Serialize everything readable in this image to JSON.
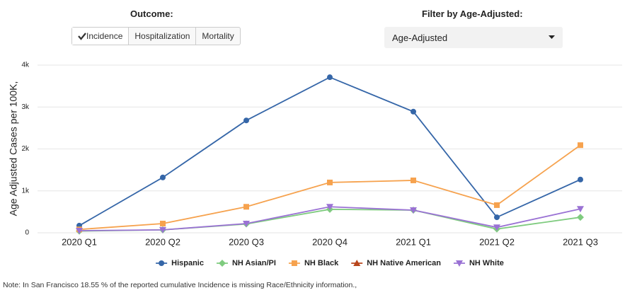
{
  "controls": {
    "outcome_label": "Outcome:",
    "outcome_options": [
      "Incidence",
      "Hospitalization",
      "Mortality"
    ],
    "filter_label": "Filter by Age-Adjusted:",
    "filter_value": "Age-Adjusted"
  },
  "chart_data": {
    "type": "line",
    "y_label": "Age Adjusted Cases per 100K,",
    "categories": [
      "2020 Q1",
      "2020 Q2",
      "2020 Q3",
      "2020 Q4",
      "2021 Q1",
      "2021 Q2",
      "2021 Q3"
    ],
    "series": [
      {
        "name": "Hispanic",
        "color": "#3566a8",
        "marker": "circle",
        "values": [
          170,
          1320,
          2680,
          3710,
          2890,
          370,
          1270
        ]
      },
      {
        "name": "NH Asian/PI",
        "color": "#7fcb7f",
        "marker": "diamond",
        "values": [
          40,
          70,
          210,
          560,
          540,
          90,
          370
        ]
      },
      {
        "name": "NH Black",
        "color": "#f6a24e",
        "marker": "square",
        "values": [
          80,
          220,
          620,
          1200,
          1250,
          660,
          2090
        ]
      },
      {
        "name": "NH Native American",
        "color": "#b8461c",
        "marker": "triangle-up",
        "values": [
          null,
          null,
          null,
          null,
          null,
          null,
          null
        ]
      },
      {
        "name": "NH White",
        "color": "#9a72d4",
        "marker": "triangle-down",
        "values": [
          50,
          70,
          220,
          620,
          540,
          130,
          570
        ]
      }
    ],
    "ylim": [
      0,
      4000
    ],
    "yticks": [
      0,
      {
        "value": 1000,
        "label": "1k"
      },
      {
        "value": 2000,
        "label": "2k"
      },
      {
        "value": 3000,
        "label": "3k"
      },
      {
        "value": 4000,
        "label": "4k"
      }
    ],
    "grid": true
  },
  "note": "Note: In San Francisco 18.55 % of the reported cumulative Incidence is missing Race/Ethnicity information.,"
}
